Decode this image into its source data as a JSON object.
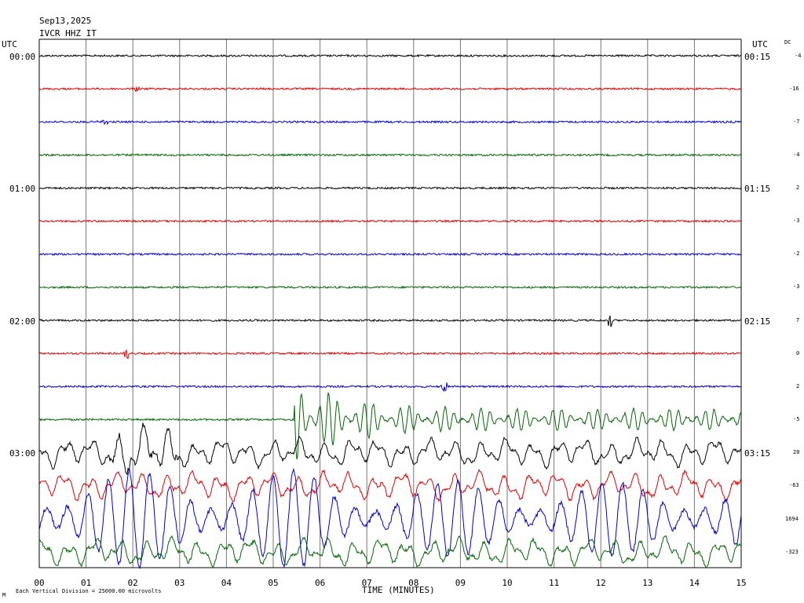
{
  "header": {
    "date": "Sep13,2025",
    "station": "IVCR HHZ IT",
    "utc_left": "UTC",
    "utc_right": "UTC",
    "dc_label": "DC"
  },
  "chart_data": {
    "type": "line",
    "title": "",
    "xlabel": "TIME (MINUTES)",
    "ylabel": "",
    "x_ticks": [
      "00",
      "01",
      "02",
      "03",
      "04",
      "05",
      "06",
      "07",
      "08",
      "09",
      "10",
      "11",
      "12",
      "13",
      "14",
      "15"
    ],
    "xlim": [
      0,
      15
    ],
    "grid": true,
    "left_time_labels": [
      "00:00",
      "01:00",
      "02:00",
      "03:00"
    ],
    "right_time_labels": [
      "00:15",
      "01:15",
      "02:15",
      "03:15"
    ],
    "trace_colors": [
      "#000000",
      "#dd0000",
      "#0000cc",
      "#006600"
    ],
    "traces": [
      {
        "dc": "-4",
        "color": "#000000",
        "activity": "quiet"
      },
      {
        "dc": "-16",
        "color": "#dd0000",
        "activity": "quiet"
      },
      {
        "dc": "-7",
        "color": "#0000cc",
        "activity": "quiet"
      },
      {
        "dc": "-4",
        "color": "#006600",
        "activity": "quiet"
      },
      {
        "dc": "2",
        "color": "#000000",
        "activity": "quiet"
      },
      {
        "dc": "-3",
        "color": "#dd0000",
        "activity": "quiet"
      },
      {
        "dc": "-2",
        "color": "#0000cc",
        "activity": "quiet"
      },
      {
        "dc": "-3",
        "color": "#006600",
        "activity": "quiet"
      },
      {
        "dc": "7",
        "color": "#000000",
        "activity": "quiet"
      },
      {
        "dc": "0",
        "color": "#dd0000",
        "activity": "quiet"
      },
      {
        "dc": "2",
        "color": "#0000cc",
        "activity": "quiet"
      },
      {
        "dc": "-5",
        "color": "#006600",
        "activity": "event"
      },
      {
        "dc": "20",
        "color": "#000000",
        "activity": "wave"
      },
      {
        "dc": "-63",
        "color": "#dd0000",
        "activity": "wave"
      },
      {
        "dc": "1694",
        "color": "#0000cc",
        "activity": "large"
      },
      {
        "dc": "-323",
        "color": "#006600",
        "activity": "wave"
      }
    ],
    "footer_note": "Each Vertical Division = 25000.00 microvolts"
  }
}
